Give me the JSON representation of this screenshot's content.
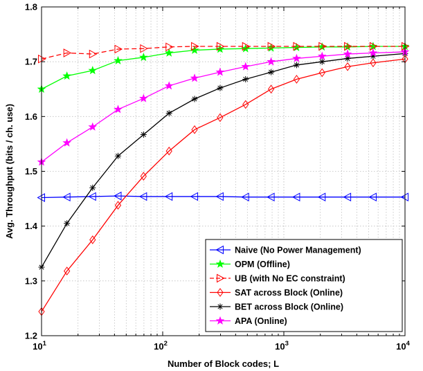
{
  "chart_data": {
    "type": "line",
    "title": "",
    "xlabel": "Number of  Block codes; L",
    "ylabel": "Avg. Throughput (bits / ch. use)",
    "xscale": "log",
    "xlim": [
      10,
      10000
    ],
    "ylim": [
      1.2,
      1.8
    ],
    "grid": true,
    "legend_position": "bottom-right",
    "x": [
      10,
      16.2,
      26.4,
      42.8,
      69.5,
      112.9,
      183.3,
      297.6,
      483.3,
      784.8,
      1274.3,
      2069.1,
      3359.8,
      5455.6,
      10000
    ],
    "xticks": [
      {
        "value": 10,
        "base": "10",
        "exp": "1"
      },
      {
        "value": 100,
        "base": "10",
        "exp": "2"
      },
      {
        "value": 1000,
        "base": "10",
        "exp": "3"
      },
      {
        "value": 10000,
        "base": "10",
        "exp": "4"
      }
    ],
    "yticks": [
      "1.2",
      "1.3",
      "1.4",
      "1.5",
      "1.6",
      "1.7",
      "1.8"
    ],
    "series": [
      {
        "name": "Naive (No Power Management)",
        "color": "#0000ff",
        "marker": "triangle-left",
        "dash": "solid",
        "values": [
          1.452,
          1.453,
          1.454,
          1.455,
          1.454,
          1.454,
          1.454,
          1.454,
          1.453,
          1.453,
          1.453,
          1.453,
          1.453,
          1.453,
          1.453
        ]
      },
      {
        "name": "OPM (Offline)",
        "color": "#00ff00",
        "marker": "star",
        "dash": "solid",
        "values": [
          1.65,
          1.674,
          1.684,
          1.702,
          1.708,
          1.716,
          1.721,
          1.723,
          1.724,
          1.725,
          1.726,
          1.727,
          1.727,
          1.728,
          1.728
        ]
      },
      {
        "name": "UB (with No EC constraint)",
        "color": "#ff0000",
        "marker": "triangle-right",
        "dash": "dashed",
        "values": [
          1.705,
          1.716,
          1.714,
          1.723,
          1.724,
          1.727,
          1.728,
          1.728,
          1.728,
          1.728,
          1.728,
          1.728,
          1.728,
          1.728,
          1.728
        ]
      },
      {
        "name": "SAT across Block (Online)",
        "color": "#ff0000",
        "marker": "diamond",
        "dash": "solid",
        "values": [
          1.244,
          1.318,
          1.375,
          1.438,
          1.491,
          1.537,
          1.576,
          1.598,
          1.622,
          1.65,
          1.668,
          1.68,
          1.691,
          1.698,
          1.705
        ]
      },
      {
        "name": "BET across Block (Online)",
        "color": "#000000",
        "marker": "asterisk",
        "dash": "solid",
        "values": [
          1.325,
          1.405,
          1.47,
          1.528,
          1.567,
          1.606,
          1.632,
          1.652,
          1.668,
          1.681,
          1.694,
          1.7,
          1.706,
          1.71,
          1.715
        ]
      },
      {
        "name": "APA (Online)",
        "color": "#ff00ff",
        "marker": "star",
        "dash": "solid",
        "values": [
          1.517,
          1.552,
          1.581,
          1.613,
          1.633,
          1.656,
          1.67,
          1.681,
          1.691,
          1.7,
          1.706,
          1.71,
          1.714,
          1.716,
          1.718
        ]
      }
    ]
  }
}
